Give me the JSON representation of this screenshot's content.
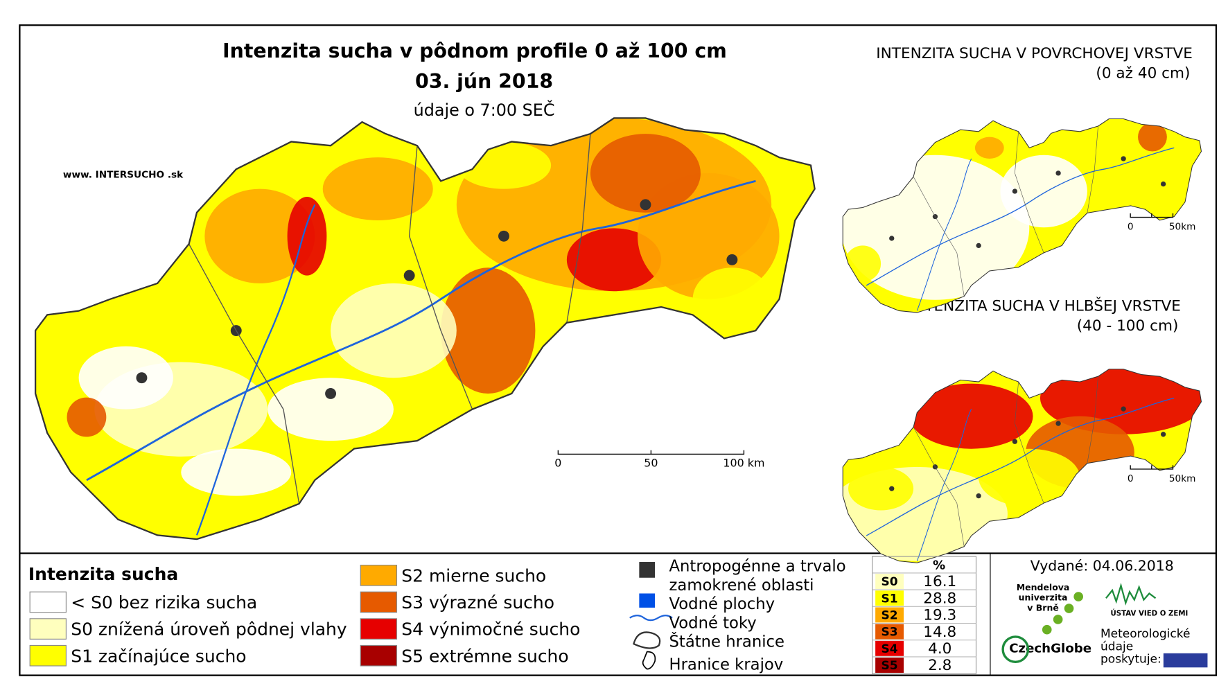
{
  "header": {
    "title": "Intenzita sucha v pôdnom profile 0 až 100 cm",
    "date": "03. jún 2018",
    "note": "údaje o 7:00 SEČ",
    "website": "www. INTERSUCHO .sk"
  },
  "main_scale": {
    "labels": [
      "0",
      "50",
      "100 km"
    ]
  },
  "inset_top": {
    "title": "INTENZITA SUCHA V POVRCHOVEJ VRSTVE",
    "subtitle": "(0 až 40 cm)",
    "scale": [
      "0",
      "50km"
    ]
  },
  "inset_bottom": {
    "title": "INTENZITA SUCHA V HLBŠEJ VRSTVE",
    "subtitle": "(40 - 100 cm)",
    "scale": [
      "0",
      "50km"
    ]
  },
  "legend": {
    "title": "Intenzita sucha",
    "classes": [
      {
        "label": "< S0 bez rizika sucha",
        "color": "#ffffff"
      },
      {
        "label": "S0 znížená úroveň pôdnej vlahy",
        "color": "#ffffbe"
      },
      {
        "label": "S1 začínajúce sucho",
        "color": "#ffff00"
      },
      {
        "label": "S2 mierne sucho",
        "color": "#ffaa00"
      },
      {
        "label": "S3 výrazné sucho",
        "color": "#e65a00"
      },
      {
        "label": "S4 výnimočné sucho",
        "color": "#e60000"
      },
      {
        "label": "S5 extrémne sucho",
        "color": "#a80000"
      }
    ]
  },
  "symbols": [
    [
      "Antropogénne a trvalo",
      "zamokrené oblasti"
    ],
    [
      "Vodné plochy"
    ],
    [
      "Vodné toky"
    ],
    [
      "Štátne hranice"
    ],
    [
      "Hranice krajov"
    ]
  ],
  "table": {
    "header": "%",
    "rows": [
      {
        "class": "S0",
        "percent": "16.1",
        "color": "#ffffbe"
      },
      {
        "class": "S1",
        "percent": "28.8",
        "color": "#ffff00"
      },
      {
        "class": "S2",
        "percent": "19.3",
        "color": "#ffaa00"
      },
      {
        "class": "S3",
        "percent": "14.8",
        "color": "#e65a00"
      },
      {
        "class": "S4",
        "percent": "4.0",
        "color": "#e60000"
      },
      {
        "class": "S5",
        "percent": "2.8",
        "color": "#a80000"
      }
    ]
  },
  "footer": {
    "issued": "Vydané: 04.06.2018",
    "mendel": [
      "Mendelova",
      "univerzita",
      "v Brně"
    ],
    "czechglobe": "CzechGlobe",
    "ustav": "ÚSTAV VIED O ZEMI",
    "meteo": [
      "Meteorologické",
      "údaje",
      "poskytuje:"
    ]
  }
}
